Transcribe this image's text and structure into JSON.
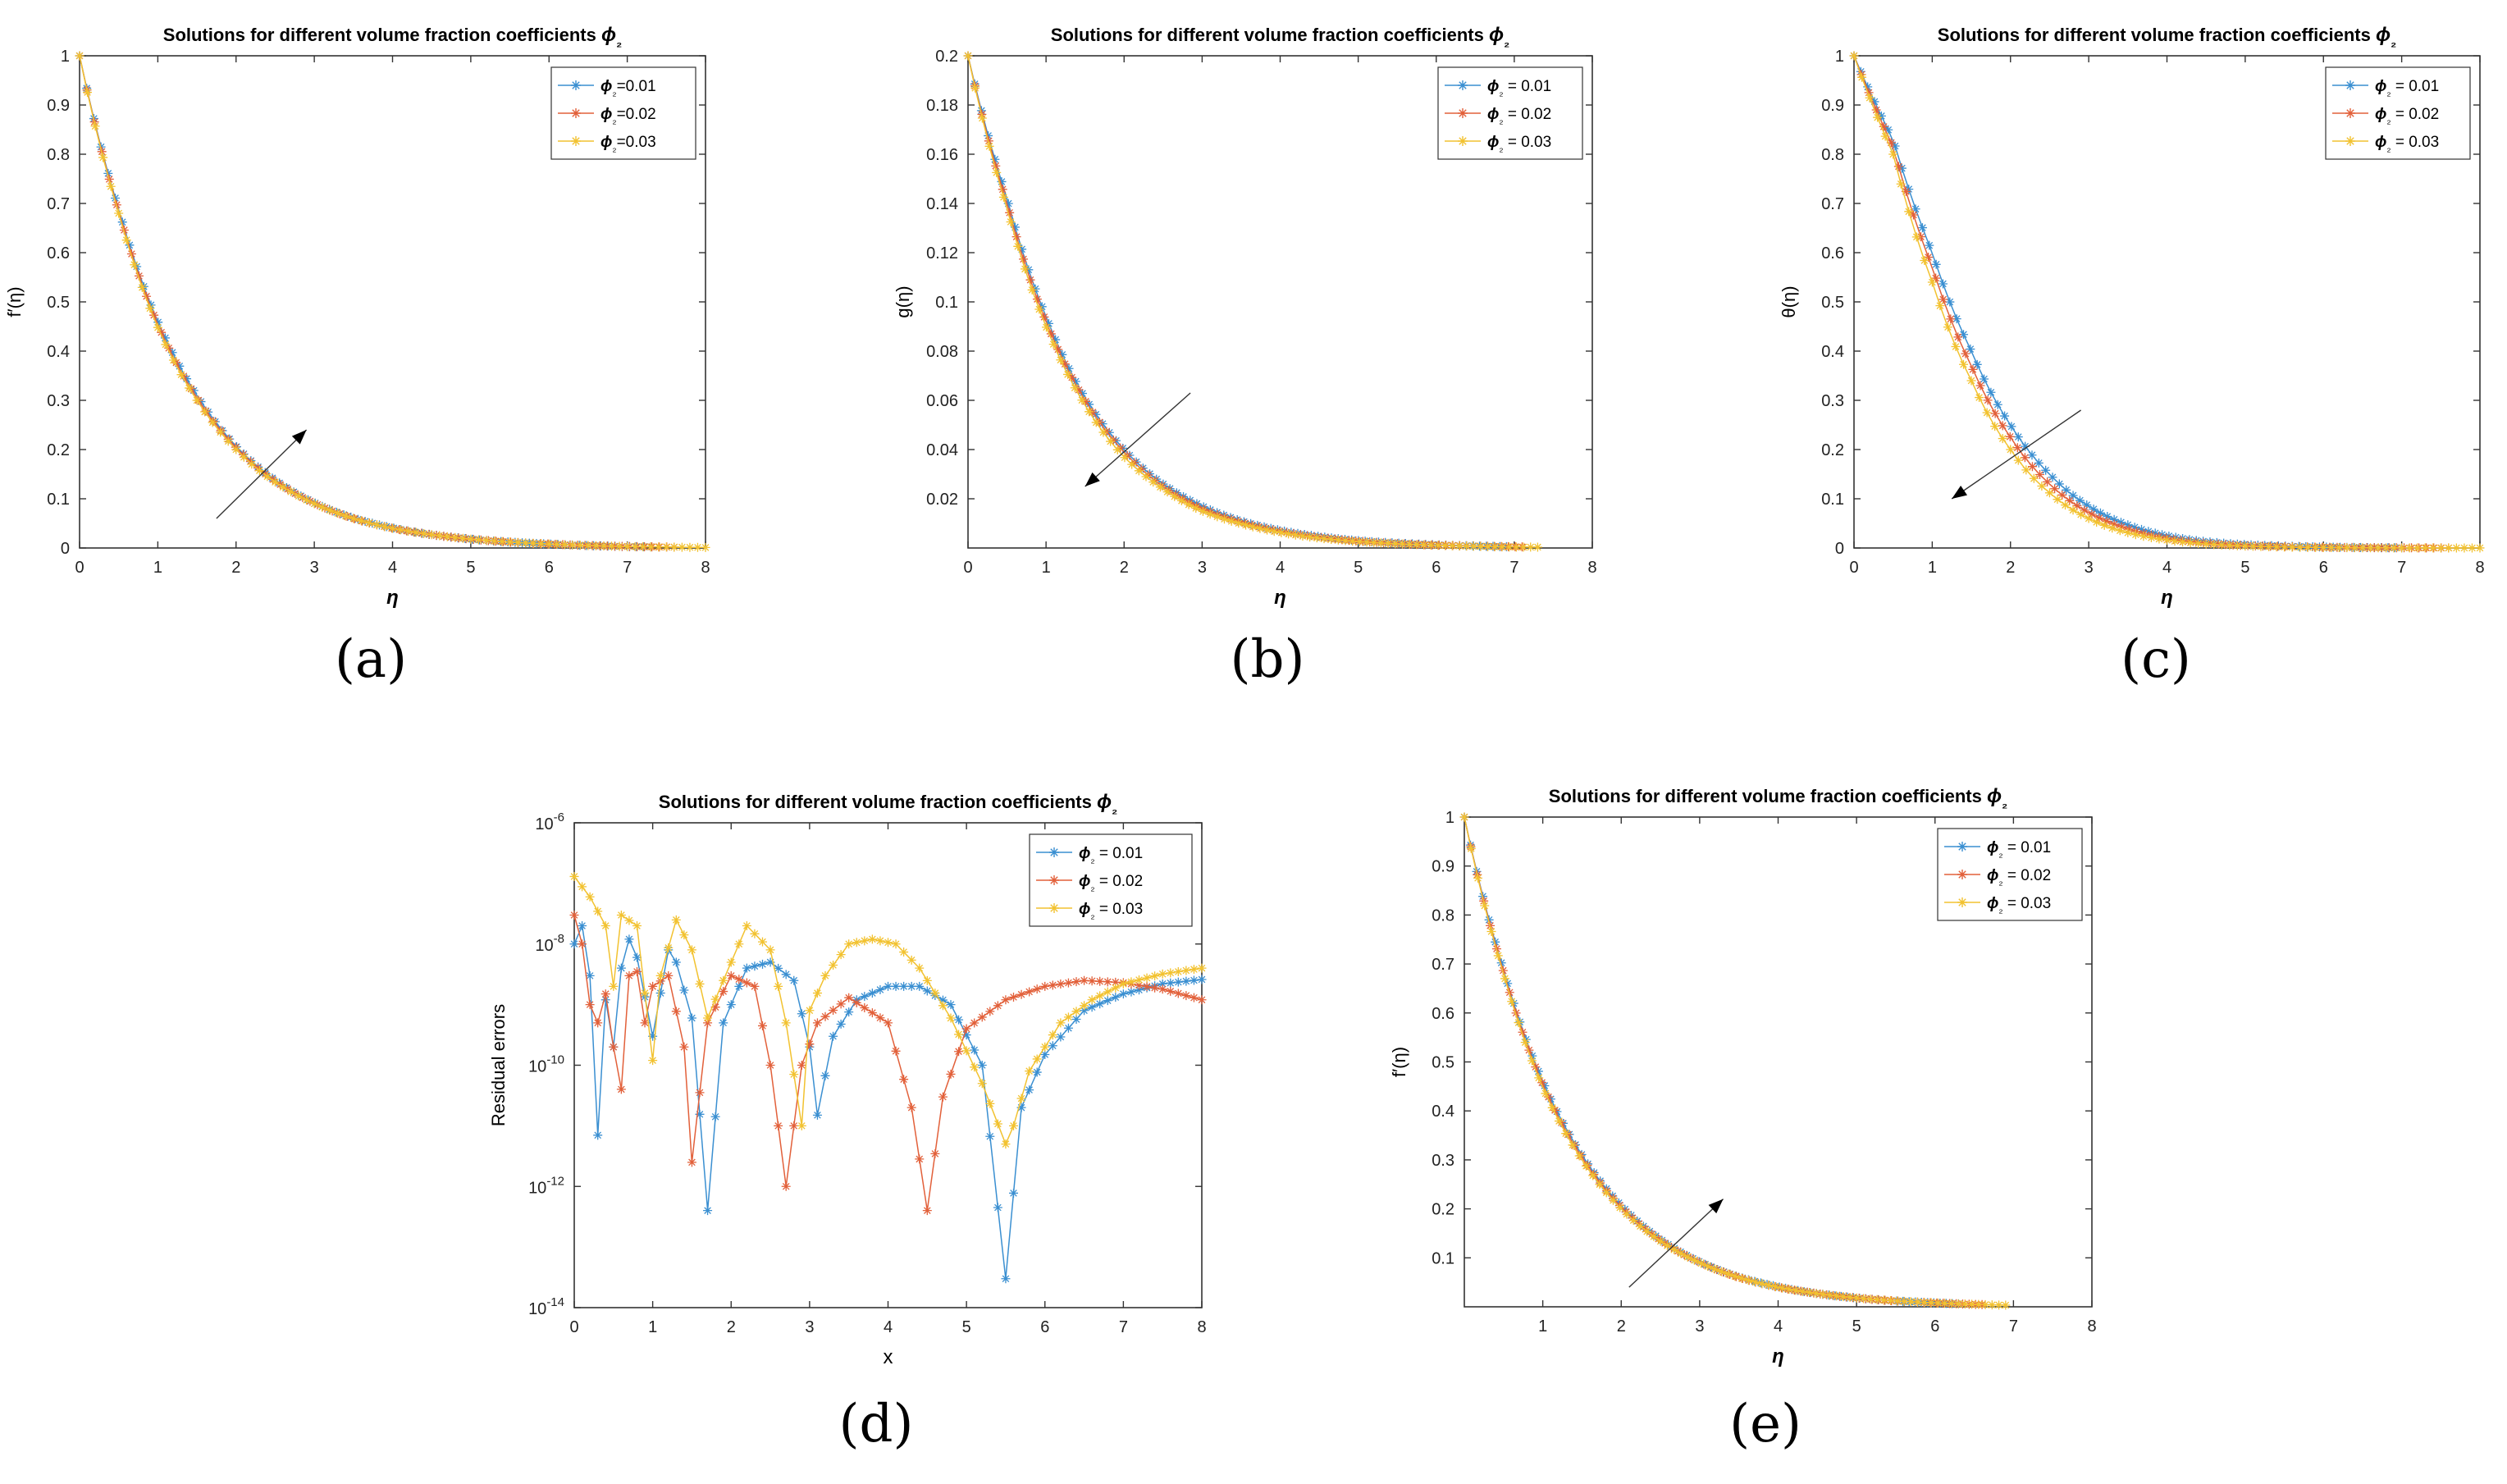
{
  "figure": {
    "colors": {
      "s1": "#3a8fd1",
      "s2": "#e2603a",
      "s3": "#f2c230",
      "axis": "#333333"
    }
  },
  "chart_data": [
    {
      "id": "a",
      "letter": "(a)",
      "type": "line",
      "title": "Solutions for different volume fraction coefficients ϕ₂",
      "xlabel": "η",
      "ylabel": "f′(η)",
      "xlim": [
        0,
        8
      ],
      "ylim": [
        0,
        1
      ],
      "yscale": "linear",
      "xticks": [
        0,
        1,
        2,
        3,
        4,
        5,
        6,
        7,
        8
      ],
      "yticks": [
        0,
        0.1,
        0.2,
        0.3,
        0.4,
        0.5,
        0.6,
        0.7,
        0.8,
        0.9,
        1
      ],
      "ytick_labels": [
        "0",
        "0.1",
        "0.2",
        "0.3",
        "0.4",
        "0.5",
        "0.6",
        "0.7",
        "0.8",
        "0.9",
        "1"
      ],
      "legend": [
        "ϕ₂=0.01",
        "ϕ₂=0.02",
        "ϕ₂=0.03"
      ],
      "legend_position": "top-right",
      "annotation": "arrow pointing up-right",
      "series": [
        {
          "name": "ϕ₂=0.01",
          "x": [
            0,
            0.5,
            1,
            1.5,
            2,
            2.5,
            3,
            3.5,
            4,
            4.5,
            5,
            5.5,
            6,
            6.5,
            7,
            7.5,
            8
          ],
          "y": [
            1,
            0.688,
            0.46,
            0.31,
            0.207,
            0.138,
            0.092,
            0.061,
            0.041,
            0.027,
            0.018,
            0.012,
            0.008,
            0.005,
            0.003,
            0.002,
            0.001
          ],
          "xend": 7.3
        },
        {
          "name": "ϕ₂=0.02",
          "x": [
            0,
            0.5,
            1,
            1.5,
            2,
            2.5,
            3,
            3.5,
            4,
            4.5,
            5,
            5.5,
            6,
            6.5,
            7,
            7.5,
            8
          ],
          "y": [
            1,
            0.684,
            0.454,
            0.305,
            0.204,
            0.136,
            0.091,
            0.06,
            0.04,
            0.027,
            0.018,
            0.012,
            0.008,
            0.005,
            0.003,
            0.002,
            0.001
          ],
          "xend": 7.6
        },
        {
          "name": "ϕ₂=0.03",
          "x": [
            0,
            0.5,
            1,
            1.5,
            2,
            2.5,
            3,
            3.5,
            4,
            4.5,
            5,
            5.5,
            6,
            6.5,
            7,
            7.5,
            8
          ],
          "y": [
            1,
            0.68,
            0.448,
            0.3,
            0.2,
            0.134,
            0.09,
            0.06,
            0.04,
            0.027,
            0.018,
            0.012,
            0.008,
            0.005,
            0.003,
            0.002,
            0.001
          ],
          "xend": 8.0
        }
      ]
    },
    {
      "id": "b",
      "letter": "(b)",
      "type": "line",
      "title": "Solutions for different volume fraction coefficients ϕ₂",
      "xlabel": "η",
      "ylabel": "g(η)",
      "xlim": [
        0,
        8
      ],
      "ylim": [
        0,
        0.2
      ],
      "yscale": "linear",
      "xticks": [
        0,
        1,
        2,
        3,
        4,
        5,
        6,
        7,
        8
      ],
      "yticks": [
        0.02,
        0.04,
        0.06,
        0.08,
        0.1,
        0.12,
        0.14,
        0.16,
        0.18,
        0.2
      ],
      "ytick_labels": [
        "0.02",
        "0.04",
        "0.06",
        "0.08",
        "0.1",
        "0.12",
        "0.14",
        "0.16",
        "0.18",
        "0.2"
      ],
      "legend": [
        "ϕ₂ = 0.01",
        "ϕ₂ = 0.02",
        "ϕ₂ = 0.03"
      ],
      "legend_position": "top-right",
      "annotation": "arrow pointing down-left",
      "series": [
        {
          "name": "ϕ₂ = 0.01",
          "x": [
            0,
            0.5,
            1,
            1.5,
            2,
            2.5,
            3,
            3.5,
            4,
            4.5,
            5,
            5.5,
            6,
            6.5,
            7,
            7.5
          ],
          "y": [
            0.2,
            0.142,
            0.094,
            0.061,
            0.04,
            0.026,
            0.017,
            0.011,
            0.0072,
            0.0047,
            0.003,
            0.002,
            0.0013,
            0.0008,
            0.0005,
            0.0003
          ],
          "xend": 6.9
        },
        {
          "name": "ϕ₂ = 0.02",
          "x": [
            0,
            0.5,
            1,
            1.5,
            2,
            2.5,
            3,
            3.5,
            4,
            4.5,
            5,
            5.5,
            6,
            6.5,
            7,
            7.5
          ],
          "y": [
            0.2,
            0.14,
            0.092,
            0.06,
            0.039,
            0.025,
            0.016,
            0.0105,
            0.0068,
            0.0044,
            0.0028,
            0.0018,
            0.0012,
            0.0008,
            0.0005,
            0.0003
          ],
          "xend": 7.1
        },
        {
          "name": "ϕ₂ = 0.03",
          "x": [
            0,
            0.5,
            1,
            1.5,
            2,
            2.5,
            3,
            3.5,
            4,
            4.5,
            5,
            5.5,
            6,
            6.5,
            7,
            7.5
          ],
          "y": [
            0.2,
            0.138,
            0.09,
            0.058,
            0.037,
            0.024,
            0.015,
            0.0098,
            0.0063,
            0.004,
            0.0026,
            0.0017,
            0.0011,
            0.0007,
            0.0004,
            0.0003
          ],
          "xend": 7.3
        }
      ]
    },
    {
      "id": "c",
      "letter": "(c)",
      "type": "line",
      "title": "Solutions for different volume fraction coefficients ϕ₂",
      "xlabel": "η",
      "ylabel": "θ(η)",
      "xlim": [
        0,
        8
      ],
      "ylim": [
        0,
        1
      ],
      "yscale": "linear",
      "xticks": [
        0,
        1,
        2,
        3,
        4,
        5,
        6,
        7,
        8
      ],
      "yticks": [
        0,
        0.1,
        0.2,
        0.3,
        0.4,
        0.5,
        0.6,
        0.7,
        0.8,
        0.9,
        1
      ],
      "ytick_labels": [
        "0",
        "0.1",
        "0.2",
        "0.3",
        "0.4",
        "0.5",
        "0.6",
        "0.7",
        "0.8",
        "0.9",
        "1"
      ],
      "legend": [
        "ϕ₂ = 0.01",
        "ϕ₂ = 0.02",
        "ϕ₂ = 0.03"
      ],
      "legend_position": "top-right",
      "annotation": "arrow pointing down-left",
      "series": [
        {
          "name": "ϕ₂ = 0.01",
          "x": [
            0,
            0.5,
            1,
            1.5,
            2,
            2.5,
            3,
            3.5,
            4,
            4.5,
            5,
            5.5,
            6,
            6.5,
            7,
            7.5,
            8
          ],
          "y": [
            1,
            0.83,
            0.6,
            0.4,
            0.25,
            0.15,
            0.085,
            0.047,
            0.025,
            0.013,
            0.007,
            0.004,
            0.002,
            0.001,
            0.0005,
            0.0003,
            0.0002
          ],
          "xend": 7.0
        },
        {
          "name": "ϕ₂ = 0.02",
          "x": [
            0,
            0.5,
            1,
            1.5,
            2,
            2.5,
            3,
            3.5,
            4,
            4.5,
            5,
            5.5,
            6,
            6.5,
            7,
            7.5,
            8
          ],
          "y": [
            1,
            0.815,
            0.57,
            0.37,
            0.225,
            0.13,
            0.072,
            0.039,
            0.02,
            0.01,
            0.005,
            0.003,
            0.0015,
            0.0008,
            0.0004,
            0.0002,
            0.0001
          ],
          "xend": 7.6
        },
        {
          "name": "ϕ₂ = 0.03",
          "x": [
            0,
            0.5,
            1,
            1.5,
            2,
            2.5,
            3,
            3.5,
            4,
            4.5,
            5,
            5.5,
            6,
            6.5,
            7,
            7.5,
            8
          ],
          "y": [
            1,
            0.8,
            0.54,
            0.34,
            0.2,
            0.112,
            0.06,
            0.031,
            0.016,
            0.008,
            0.004,
            0.002,
            0.001,
            0.0005,
            0.0002,
            0.0001,
            0.0001
          ],
          "xend": 8.0
        }
      ]
    },
    {
      "id": "d",
      "letter": "(d)",
      "type": "line",
      "title": "Solutions for different volume fraction coefficients ϕ₂",
      "xlabel": "x",
      "ylabel": "Residual errors",
      "xlim": [
        0,
        8
      ],
      "ylim": [
        1e-14,
        1e-06
      ],
      "yscale": "log",
      "xticks": [
        0,
        1,
        2,
        3,
        4,
        5,
        6,
        7,
        8
      ],
      "yticks": [
        1e-14,
        1e-12,
        1e-10,
        1e-08,
        1e-06
      ],
      "ytick_labels": [
        "10^-14",
        "10^-12",
        "10^-10",
        "10^-8",
        "10^-6"
      ],
      "legend": [
        "ϕ₂ = 0.01",
        "ϕ₂ = 0.02",
        "ϕ₂ = 0.03"
      ],
      "legend_position": "top-right",
      "series": [
        {
          "name": "ϕ₂ = 0.01",
          "x": [
            0,
            0.1,
            0.2,
            0.3,
            0.4,
            0.5,
            0.6,
            0.7,
            0.8,
            1.0,
            1.2,
            1.3,
            1.5,
            1.7,
            1.9,
            2.2,
            2.5,
            2.8,
            3.0,
            3.1,
            3.3,
            3.6,
            4.0,
            4.4,
            4.8,
            5.2,
            5.5,
            5.7,
            6.0,
            6.5,
            7.0,
            7.5,
            8.0
          ],
          "y": [
            1e-08,
            2e-08,
            3e-09,
            7e-12,
            1.2e-09,
            2e-10,
            4e-09,
            1.2e-08,
            6e-09,
            3e-10,
            8e-09,
            5e-09,
            6e-10,
            4e-13,
            5e-10,
            4e-09,
            5e-09,
            2.5e-09,
            2e-10,
            1.5e-11,
            3e-10,
            1.2e-09,
            2e-09,
            2e-09,
            1e-09,
            1e-10,
            3e-14,
            2e-11,
            1.5e-10,
            8e-10,
            1.5e-09,
            2.2e-09,
            2.6e-09
          ]
        },
        {
          "name": "ϕ₂ = 0.02",
          "x": [
            0,
            0.1,
            0.2,
            0.3,
            0.4,
            0.5,
            0.6,
            0.7,
            0.8,
            0.9,
            1.0,
            1.2,
            1.4,
            1.5,
            1.7,
            2.0,
            2.3,
            2.5,
            2.7,
            2.9,
            3.1,
            3.5,
            4.0,
            4.3,
            4.5,
            4.7,
            5.0,
            5.5,
            6.0,
            6.5,
            7.0,
            7.5,
            8.0
          ],
          "y": [
            3e-08,
            1e-08,
            1e-09,
            5e-10,
            1.5e-09,
            2e-10,
            4e-11,
            3e-09,
            3.5e-09,
            5e-10,
            2e-09,
            3e-09,
            2e-10,
            2.5e-12,
            5e-10,
            3e-09,
            2e-09,
            1e-10,
            1e-12,
            1e-10,
            5e-10,
            1.3e-09,
            5e-10,
            2e-11,
            4e-13,
            3e-11,
            4e-10,
            1.2e-09,
            2e-09,
            2.5e-09,
            2.3e-09,
            1.8e-09,
            1.2e-09
          ]
        },
        {
          "name": "ϕ₂ = 0.03",
          "x": [
            0,
            0.2,
            0.4,
            0.5,
            0.6,
            0.8,
            1.0,
            1.1,
            1.3,
            1.5,
            1.7,
            1.9,
            2.2,
            2.5,
            2.7,
            2.9,
            3.0,
            3.2,
            3.5,
            3.8,
            4.1,
            4.4,
            4.8,
            5.2,
            5.5,
            5.6,
            5.8,
            6.2,
            6.6,
            7.0,
            7.5,
            8.0
          ],
          "y": [
            1.3e-07,
            6e-08,
            2e-08,
            2e-09,
            3e-08,
            2e-08,
            1.2e-10,
            3e-09,
            2.5e-08,
            8e-09,
            6e-10,
            2.5e-09,
            2e-08,
            8e-09,
            5e-10,
            1e-11,
            8e-10,
            3e-09,
            1e-08,
            1.2e-08,
            1e-08,
            4e-09,
            6e-10,
            5e-11,
            5e-12,
            1e-11,
            8e-11,
            5e-10,
            1.2e-09,
            2.2e-09,
            3.2e-09,
            4e-09
          ]
        }
      ]
    },
    {
      "id": "e",
      "letter": "(e)",
      "type": "line",
      "title": "Solutions for different volume fraction coefficients ϕ₂",
      "xlabel": "η",
      "ylabel": "f′(η)",
      "xlim": [
        0,
        8
      ],
      "ylim": [
        0,
        1
      ],
      "yscale": "linear",
      "xticks": [
        1,
        2,
        3,
        4,
        5,
        6,
        7,
        8
      ],
      "yticks": [
        0.1,
        0.2,
        0.3,
        0.4,
        0.5,
        0.6,
        0.7,
        0.8,
        0.9,
        1
      ],
      "ytick_labels": [
        "0.1",
        "0.2",
        "0.3",
        "0.4",
        "0.5",
        "0.6",
        "0.7",
        "0.8",
        "0.9",
        "1"
      ],
      "legend": [
        "ϕ₂ = 0.01",
        "ϕ₂ = 0.02",
        "ϕ₂ = 0.03"
      ],
      "legend_position": "top-right",
      "annotation": "arrow pointing up-right",
      "series": [
        {
          "name": "ϕ₂ = 0.01",
          "x": [
            0,
            0.5,
            1,
            1.5,
            2,
            2.5,
            3,
            3.5,
            4,
            4.5,
            5,
            5.5,
            6,
            6.5,
            7
          ],
          "y": [
            1,
            0.688,
            0.46,
            0.31,
            0.207,
            0.138,
            0.092,
            0.061,
            0.041,
            0.027,
            0.018,
            0.012,
            0.008,
            0.005,
            0.003
          ],
          "xend": 6.3
        },
        {
          "name": "ϕ₂ = 0.02",
          "x": [
            0,
            0.5,
            1,
            1.5,
            2,
            2.5,
            3,
            3.5,
            4,
            4.5,
            5,
            5.5,
            6,
            6.5,
            7
          ],
          "y": [
            1,
            0.684,
            0.454,
            0.305,
            0.204,
            0.136,
            0.091,
            0.06,
            0.04,
            0.027,
            0.018,
            0.012,
            0.008,
            0.005,
            0.003
          ],
          "xend": 6.6
        },
        {
          "name": "ϕ₂ = 0.03",
          "x": [
            0,
            0.5,
            1,
            1.5,
            2,
            2.5,
            3,
            3.5,
            4,
            4.5,
            5,
            5.5,
            6,
            6.5,
            7
          ],
          "y": [
            1,
            0.68,
            0.448,
            0.3,
            0.2,
            0.134,
            0.09,
            0.06,
            0.04,
            0.027,
            0.018,
            0.012,
            0.008,
            0.005,
            0.003
          ],
          "xend": 6.9
        }
      ]
    }
  ]
}
